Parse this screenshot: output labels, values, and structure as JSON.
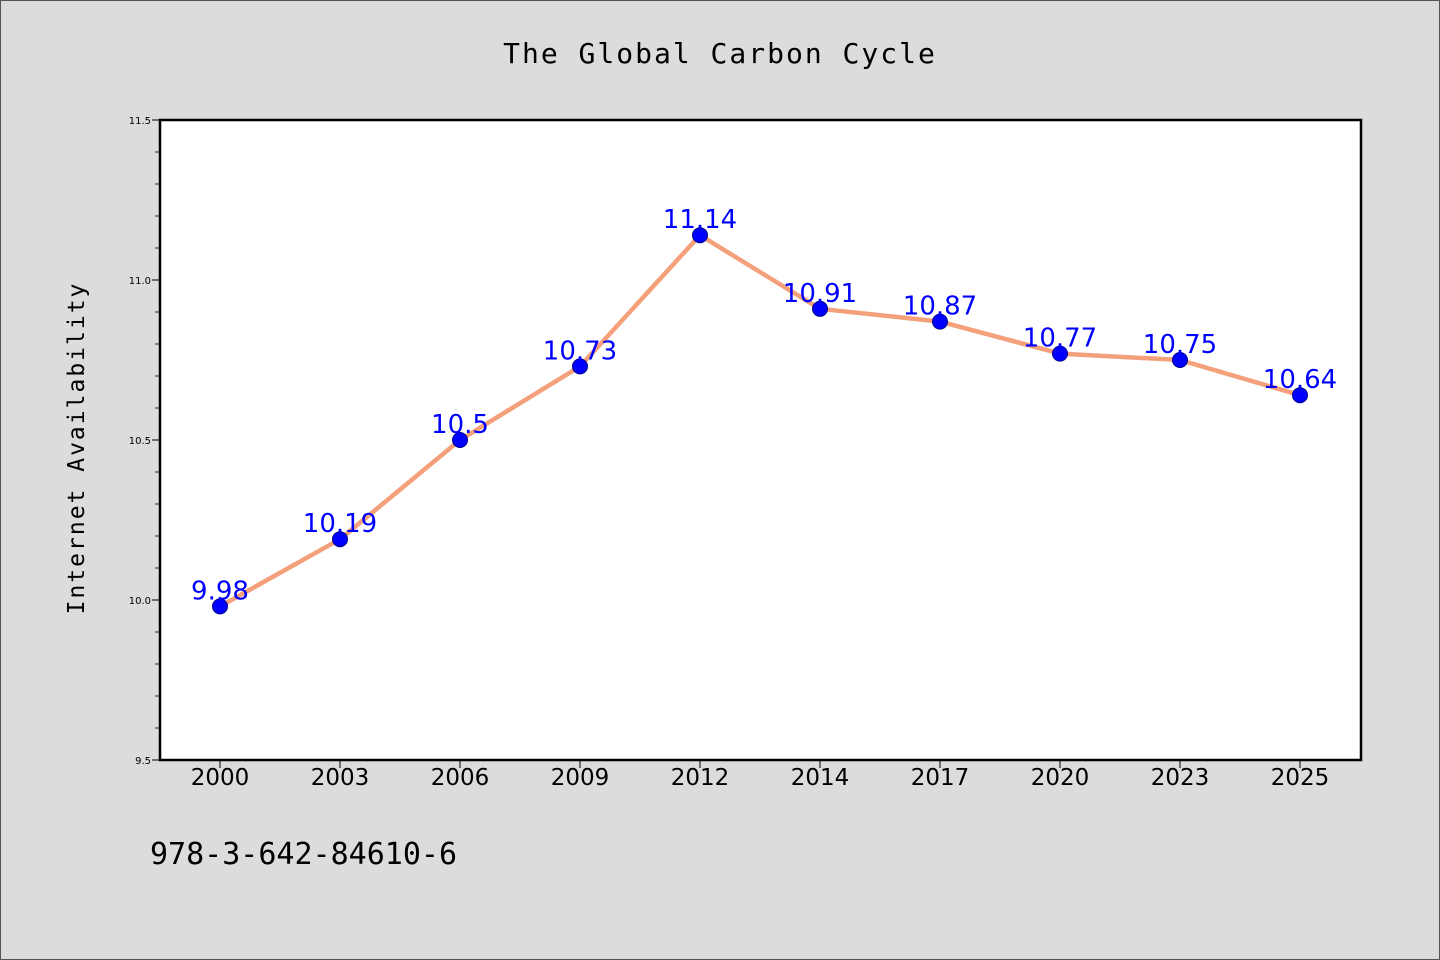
{
  "chart_data": {
    "type": "line",
    "title": "The Global Carbon Cycle",
    "xlabel": "",
    "ylabel": "Internet Availability",
    "categories": [
      "2000",
      "2003",
      "2006",
      "2009",
      "2012",
      "2014",
      "2017",
      "2020",
      "2023",
      "2025"
    ],
    "series": [
      {
        "values": [
          9.98,
          10.19,
          10.5,
          10.73,
          11.14,
          10.91,
          10.87,
          10.77,
          10.75,
          10.64
        ]
      }
    ],
    "data_labels": [
      "9.98",
      "10.19",
      "10.5",
      "10.73",
      "11.14",
      "10.91",
      "10.87",
      "10.77",
      "10.75",
      "10.64"
    ],
    "ylim": [
      9.5,
      11.5
    ],
    "yticks": [
      "9.5",
      "10.0",
      "10.5",
      "11.0",
      "11.5"
    ],
    "yminor_step": 0.1,
    "grid": false,
    "legend": "none",
    "colors": {
      "line": "#f4a07a",
      "marker": "#0000ff",
      "marker_edge": "#00008b",
      "data_label": "#0000ff",
      "plot_bg": "#ffffff",
      "figure_bg": "#dcdcdc"
    }
  },
  "footer_text": "978-3-642-84610-6"
}
